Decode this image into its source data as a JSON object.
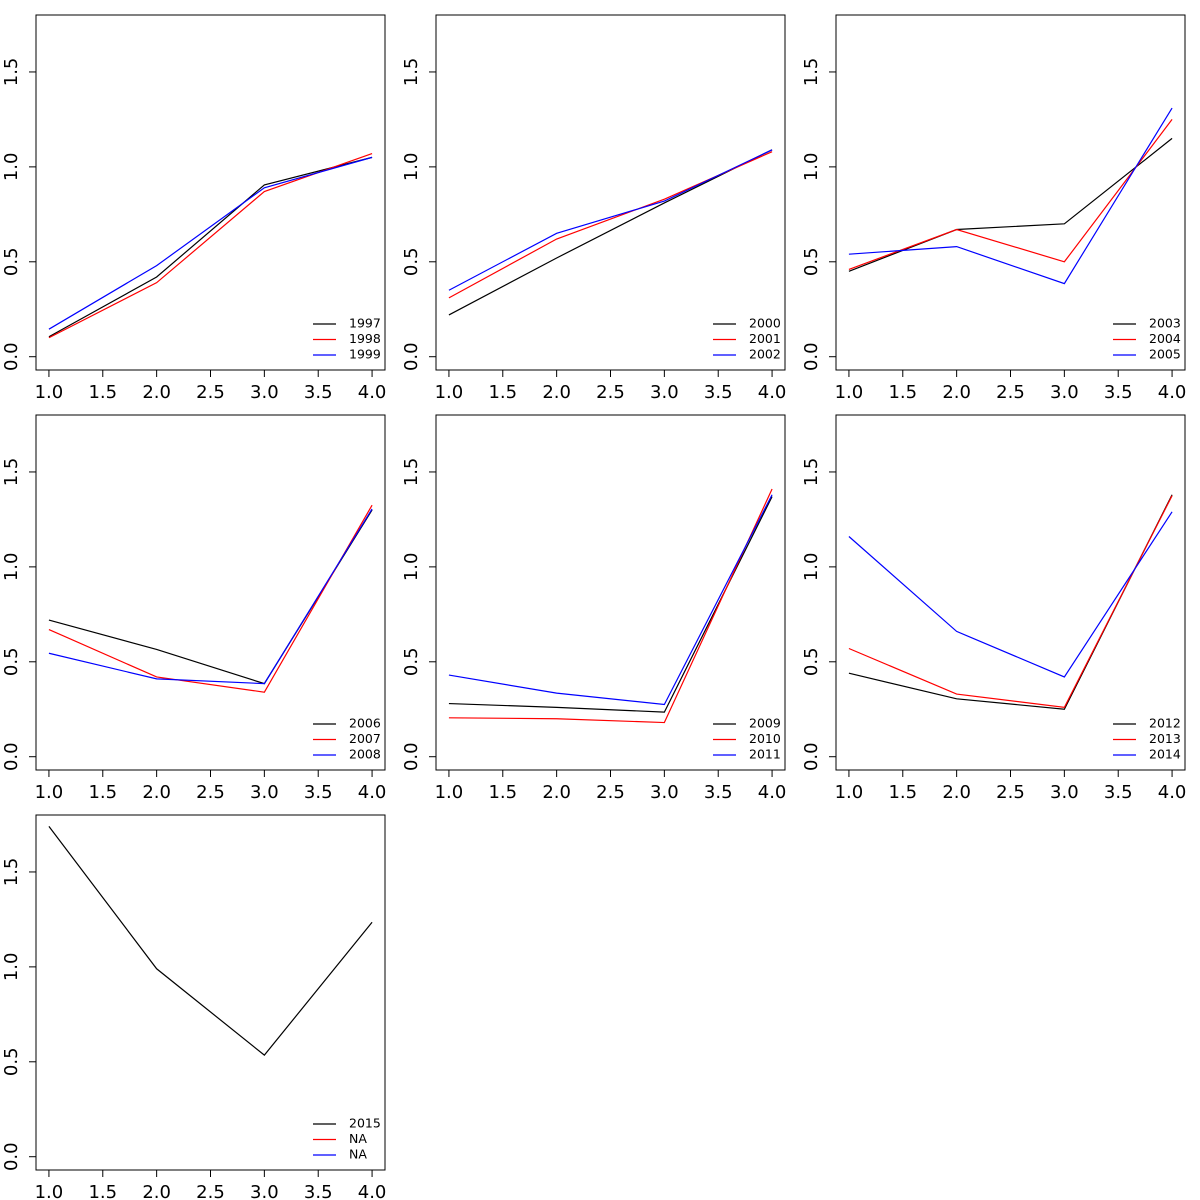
{
  "chart_data": [
    {
      "type": "line",
      "x": [
        1,
        2,
        3,
        4
      ],
      "xlim": [
        0.88,
        4.12
      ],
      "ylim": [
        -0.07,
        1.8
      ],
      "legend": "bottomright",
      "xticks": [
        {
          "value": 1,
          "label": "1.0"
        },
        {
          "value": 1.5,
          "label": "1.5"
        },
        {
          "value": 2,
          "label": "2.0"
        },
        {
          "value": 2.5,
          "label": "2.5"
        },
        {
          "value": 3,
          "label": "3.0"
        },
        {
          "value": 3.5,
          "label": "3.5"
        },
        {
          "value": 4,
          "label": "4.0"
        }
      ],
      "yticks": [
        {
          "value": 0,
          "label": "0.0"
        },
        {
          "value": 0.5,
          "label": "0.5"
        },
        {
          "value": 1,
          "label": "1.0"
        },
        {
          "value": 1.5,
          "label": "1.5"
        }
      ],
      "series": [
        {
          "name": "1997",
          "color": "#000000",
          "values": [
            0.105,
            0.42,
            0.905,
            1.05
          ]
        },
        {
          "name": "1998",
          "color": "#ff0000",
          "values": [
            0.1,
            0.39,
            0.87,
            1.07
          ]
        },
        {
          "name": "1999",
          "color": "#0000ff",
          "values": [
            0.145,
            0.48,
            0.89,
            1.05
          ]
        }
      ]
    },
    {
      "type": "line",
      "x": [
        1,
        2,
        3,
        4
      ],
      "xlim": [
        0.88,
        4.12
      ],
      "ylim": [
        -0.07,
        1.8
      ],
      "legend": "bottomright",
      "xticks": [
        {
          "value": 1,
          "label": "1.0"
        },
        {
          "value": 1.5,
          "label": "1.5"
        },
        {
          "value": 2,
          "label": "2.0"
        },
        {
          "value": 2.5,
          "label": "2.5"
        },
        {
          "value": 3,
          "label": "3.0"
        },
        {
          "value": 3.5,
          "label": "3.5"
        },
        {
          "value": 4,
          "label": "4.0"
        }
      ],
      "yticks": [
        {
          "value": 0,
          "label": "0.0"
        },
        {
          "value": 0.5,
          "label": "0.5"
        },
        {
          "value": 1,
          "label": "1.0"
        },
        {
          "value": 1.5,
          "label": "1.5"
        }
      ],
      "series": [
        {
          "name": "2000",
          "color": "#000000",
          "values": [
            0.22,
            0.52,
            0.81,
            1.09
          ]
        },
        {
          "name": "2001",
          "color": "#ff0000",
          "values": [
            0.31,
            0.62,
            0.83,
            1.08
          ]
        },
        {
          "name": "2002",
          "color": "#0000ff",
          "values": [
            0.35,
            0.65,
            0.82,
            1.09
          ]
        }
      ]
    },
    {
      "type": "line",
      "x": [
        1,
        2,
        3,
        4
      ],
      "xlim": [
        0.88,
        4.12
      ],
      "ylim": [
        -0.07,
        1.8
      ],
      "legend": "bottomright",
      "xticks": [
        {
          "value": 1,
          "label": "1.0"
        },
        {
          "value": 1.5,
          "label": "1.5"
        },
        {
          "value": 2,
          "label": "2.0"
        },
        {
          "value": 2.5,
          "label": "2.5"
        },
        {
          "value": 3,
          "label": "3.0"
        },
        {
          "value": 3.5,
          "label": "3.5"
        },
        {
          "value": 4,
          "label": "4.0"
        }
      ],
      "yticks": [
        {
          "value": 0,
          "label": "0.0"
        },
        {
          "value": 0.5,
          "label": "0.5"
        },
        {
          "value": 1,
          "label": "1.0"
        },
        {
          "value": 1.5,
          "label": "1.5"
        }
      ],
      "series": [
        {
          "name": "2003",
          "color": "#000000",
          "values": [
            0.45,
            0.67,
            0.7,
            1.15
          ]
        },
        {
          "name": "2004",
          "color": "#ff0000",
          "values": [
            0.46,
            0.67,
            0.5,
            1.25
          ]
        },
        {
          "name": "2005",
          "color": "#0000ff",
          "values": [
            0.54,
            0.58,
            0.385,
            1.31
          ]
        }
      ]
    },
    {
      "type": "line",
      "x": [
        1,
        2,
        3,
        4
      ],
      "xlim": [
        0.88,
        4.12
      ],
      "ylim": [
        -0.07,
        1.8
      ],
      "legend": "bottomright",
      "xticks": [
        {
          "value": 1,
          "label": "1.0"
        },
        {
          "value": 1.5,
          "label": "1.5"
        },
        {
          "value": 2,
          "label": "2.0"
        },
        {
          "value": 2.5,
          "label": "2.5"
        },
        {
          "value": 3,
          "label": "3.0"
        },
        {
          "value": 3.5,
          "label": "3.5"
        },
        {
          "value": 4,
          "label": "4.0"
        }
      ],
      "yticks": [
        {
          "value": 0,
          "label": "0.0"
        },
        {
          "value": 0.5,
          "label": "0.5"
        },
        {
          "value": 1,
          "label": "1.0"
        },
        {
          "value": 1.5,
          "label": "1.5"
        }
      ],
      "series": [
        {
          "name": "2006",
          "color": "#000000",
          "values": [
            0.72,
            0.565,
            0.385,
            1.3
          ]
        },
        {
          "name": "2007",
          "color": "#ff0000",
          "values": [
            0.67,
            0.42,
            0.34,
            1.325
          ]
        },
        {
          "name": "2008",
          "color": "#0000ff",
          "values": [
            0.545,
            0.41,
            0.385,
            1.305
          ]
        }
      ]
    },
    {
      "type": "line",
      "x": [
        1,
        2,
        3,
        4
      ],
      "xlim": [
        0.88,
        4.12
      ],
      "ylim": [
        -0.07,
        1.8
      ],
      "legend": "bottomright",
      "xticks": [
        {
          "value": 1,
          "label": "1.0"
        },
        {
          "value": 1.5,
          "label": "1.5"
        },
        {
          "value": 2,
          "label": "2.0"
        },
        {
          "value": 2.5,
          "label": "2.5"
        },
        {
          "value": 3,
          "label": "3.0"
        },
        {
          "value": 3.5,
          "label": "3.5"
        },
        {
          "value": 4,
          "label": "4.0"
        }
      ],
      "yticks": [
        {
          "value": 0,
          "label": "0.0"
        },
        {
          "value": 0.5,
          "label": "0.5"
        },
        {
          "value": 1,
          "label": "1.0"
        },
        {
          "value": 1.5,
          "label": "1.5"
        }
      ],
      "series": [
        {
          "name": "2009",
          "color": "#000000",
          "values": [
            0.28,
            0.26,
            0.235,
            1.37
          ]
        },
        {
          "name": "2010",
          "color": "#ff0000",
          "values": [
            0.205,
            0.2,
            0.18,
            1.41
          ]
        },
        {
          "name": "2011",
          "color": "#0000ff",
          "values": [
            0.43,
            0.335,
            0.275,
            1.38
          ]
        }
      ]
    },
    {
      "type": "line",
      "x": [
        1,
        2,
        3,
        4
      ],
      "xlim": [
        0.88,
        4.12
      ],
      "ylim": [
        -0.07,
        1.8
      ],
      "legend": "bottomright",
      "xticks": [
        {
          "value": 1,
          "label": "1.0"
        },
        {
          "value": 1.5,
          "label": "1.5"
        },
        {
          "value": 2,
          "label": "2.0"
        },
        {
          "value": 2.5,
          "label": "2.5"
        },
        {
          "value": 3,
          "label": "3.0"
        },
        {
          "value": 3.5,
          "label": "3.5"
        },
        {
          "value": 4,
          "label": "4.0"
        }
      ],
      "yticks": [
        {
          "value": 0,
          "label": "0.0"
        },
        {
          "value": 0.5,
          "label": "0.5"
        },
        {
          "value": 1,
          "label": "1.0"
        },
        {
          "value": 1.5,
          "label": "1.5"
        }
      ],
      "series": [
        {
          "name": "2012",
          "color": "#000000",
          "values": [
            0.44,
            0.305,
            0.25,
            1.38
          ]
        },
        {
          "name": "2013",
          "color": "#ff0000",
          "values": [
            0.57,
            0.33,
            0.26,
            1.375
          ]
        },
        {
          "name": "2014",
          "color": "#0000ff",
          "values": [
            1.16,
            0.66,
            0.42,
            1.29
          ]
        }
      ]
    },
    {
      "type": "line",
      "x": [
        1,
        2,
        3,
        4
      ],
      "xlim": [
        0.88,
        4.12
      ],
      "ylim": [
        -0.07,
        1.8
      ],
      "legend": "bottomright",
      "xticks": [
        {
          "value": 1,
          "label": "1.0"
        },
        {
          "value": 1.5,
          "label": "1.5"
        },
        {
          "value": 2,
          "label": "2.0"
        },
        {
          "value": 2.5,
          "label": "2.5"
        },
        {
          "value": 3,
          "label": "3.0"
        },
        {
          "value": 3.5,
          "label": "3.5"
        },
        {
          "value": 4,
          "label": "4.0"
        }
      ],
      "yticks": [
        {
          "value": 0,
          "label": "0.0"
        },
        {
          "value": 0.5,
          "label": "0.5"
        },
        {
          "value": 1,
          "label": "1.0"
        },
        {
          "value": 1.5,
          "label": "1.5"
        }
      ],
      "series": [
        {
          "name": "2015",
          "color": "#000000",
          "values": [
            1.74,
            0.99,
            0.535,
            1.235
          ]
        },
        {
          "name": "NA",
          "color": "#ff0000",
          "values": [
            null,
            null,
            null,
            null
          ]
        },
        {
          "name": "NA",
          "color": "#0000ff",
          "values": [
            null,
            null,
            null,
            null
          ]
        }
      ]
    }
  ]
}
